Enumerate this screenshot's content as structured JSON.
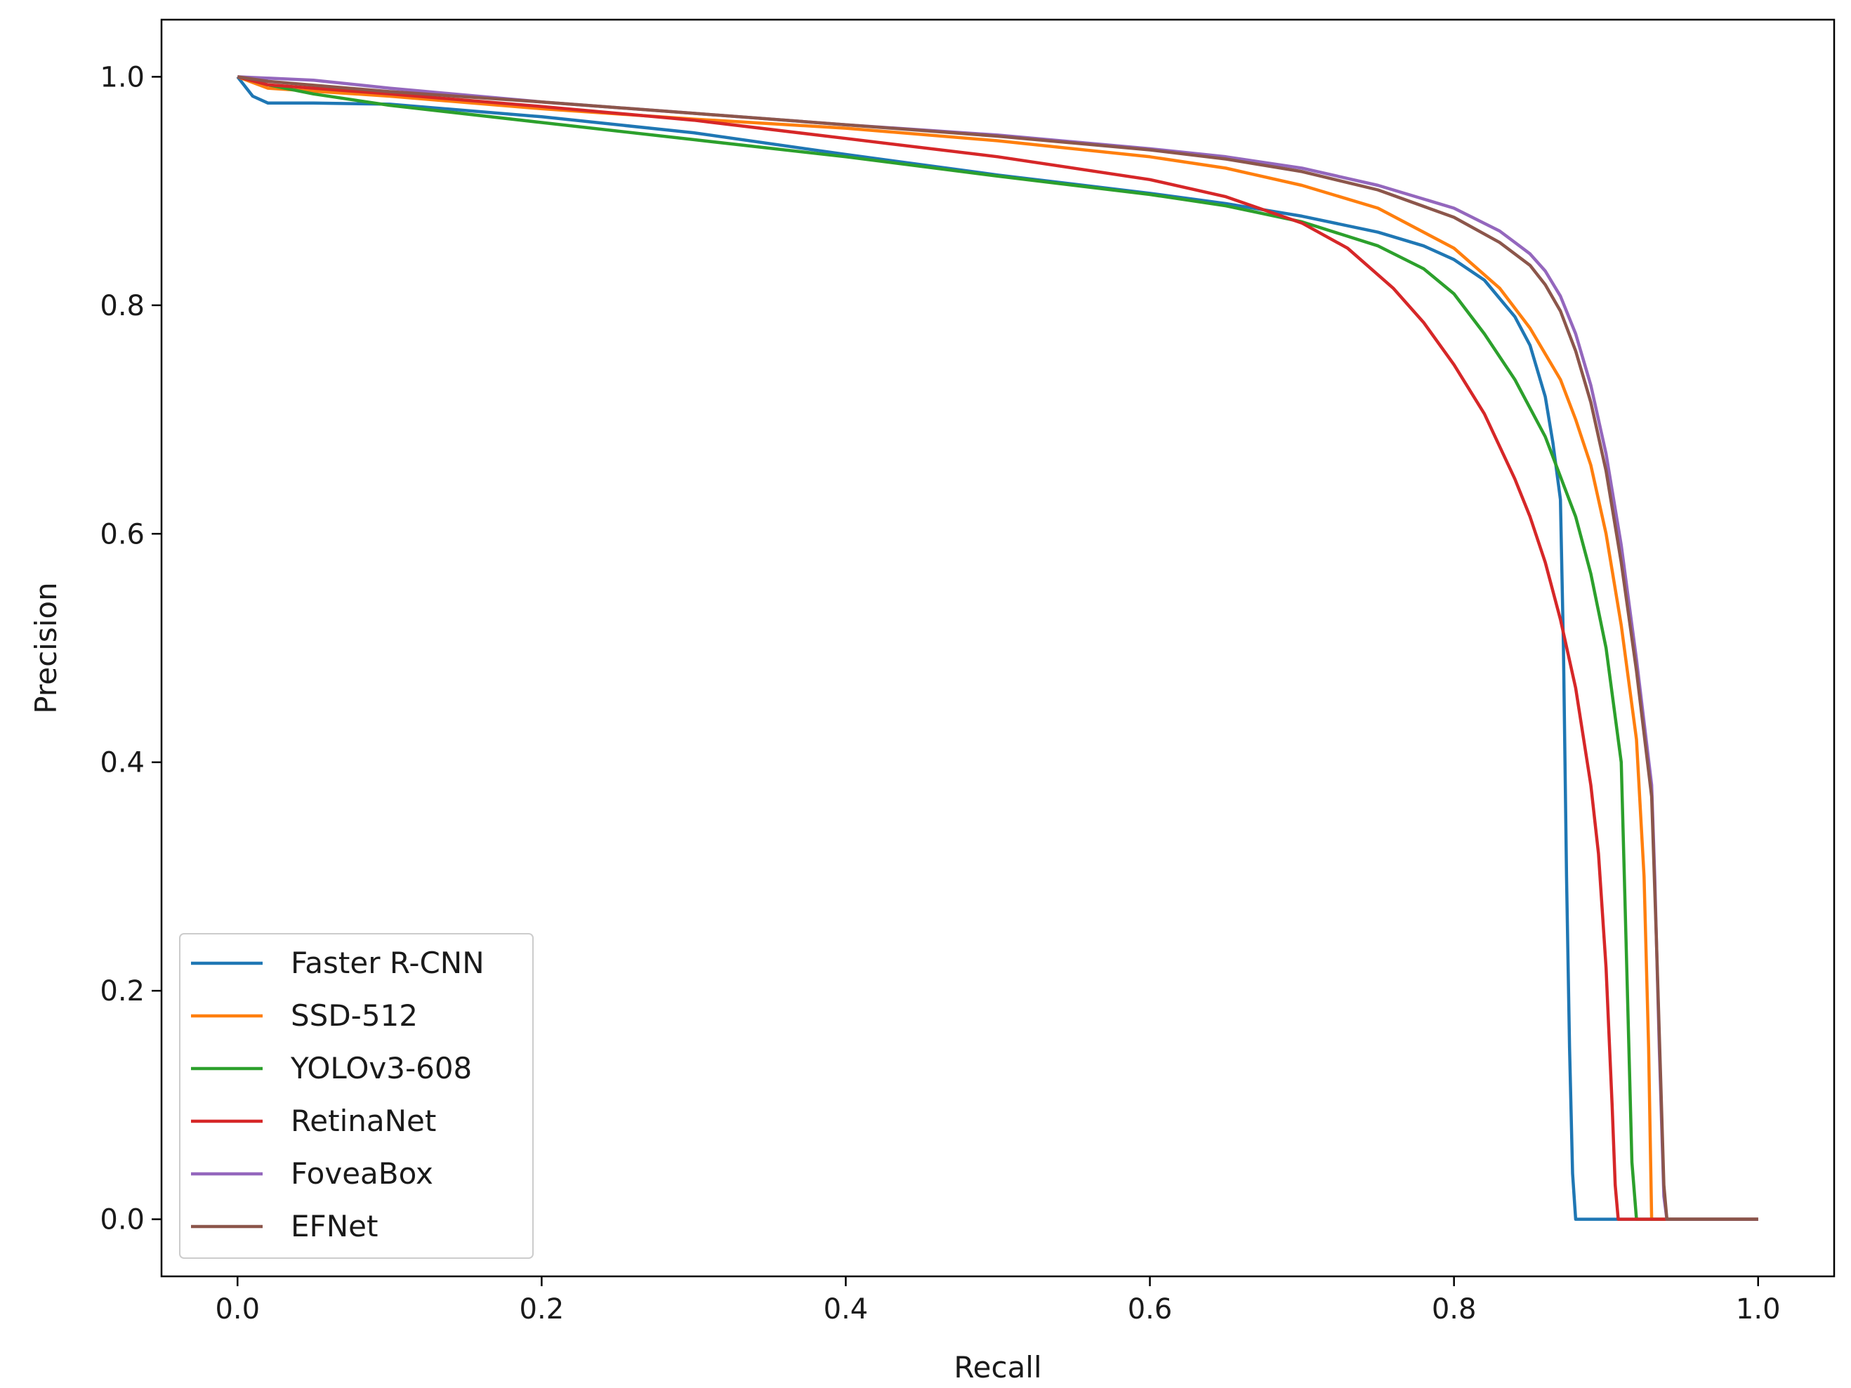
{
  "chart_data": {
    "type": "line",
    "title": "",
    "xlabel": "Recall",
    "ylabel": "Precision",
    "xlim": [
      -0.05,
      1.05
    ],
    "ylim": [
      -0.05,
      1.05
    ],
    "grid": false,
    "legend_position": "lower-left",
    "x_ticks": [
      0.0,
      0.2,
      0.4,
      0.6,
      0.8,
      1.0
    ],
    "x_tick_labels": [
      "0.0",
      "0.2",
      "0.4",
      "0.6",
      "0.8",
      "1.0"
    ],
    "y_ticks": [
      0.0,
      0.2,
      0.4,
      0.6,
      0.8,
      1.0
    ],
    "y_tick_labels": [
      "0.0",
      "0.2",
      "0.4",
      "0.6",
      "0.8",
      "1.0"
    ],
    "series": [
      {
        "name": "Faster R-CNN",
        "color": "#1f77b4",
        "points": [
          [
            0.0,
            1.0
          ],
          [
            0.01,
            0.983
          ],
          [
            0.02,
            0.977
          ],
          [
            0.05,
            0.977
          ],
          [
            0.1,
            0.976
          ],
          [
            0.2,
            0.965
          ],
          [
            0.3,
            0.951
          ],
          [
            0.4,
            0.932
          ],
          [
            0.5,
            0.914
          ],
          [
            0.6,
            0.898
          ],
          [
            0.65,
            0.889
          ],
          [
            0.7,
            0.878
          ],
          [
            0.75,
            0.864
          ],
          [
            0.78,
            0.852
          ],
          [
            0.8,
            0.84
          ],
          [
            0.82,
            0.822
          ],
          [
            0.84,
            0.79
          ],
          [
            0.85,
            0.765
          ],
          [
            0.86,
            0.72
          ],
          [
            0.865,
            0.68
          ],
          [
            0.87,
            0.63
          ],
          [
            0.872,
            0.5
          ],
          [
            0.874,
            0.3
          ],
          [
            0.876,
            0.15
          ],
          [
            0.878,
            0.04
          ],
          [
            0.88,
            0.0
          ],
          [
            1.0,
            0.0
          ]
        ]
      },
      {
        "name": "SSD-512",
        "color": "#ff7f0e",
        "points": [
          [
            0.0,
            1.0
          ],
          [
            0.02,
            0.99
          ],
          [
            0.1,
            0.983
          ],
          [
            0.2,
            0.972
          ],
          [
            0.3,
            0.963
          ],
          [
            0.4,
            0.955
          ],
          [
            0.5,
            0.944
          ],
          [
            0.6,
            0.93
          ],
          [
            0.65,
            0.92
          ],
          [
            0.7,
            0.905
          ],
          [
            0.75,
            0.885
          ],
          [
            0.8,
            0.85
          ],
          [
            0.83,
            0.815
          ],
          [
            0.85,
            0.78
          ],
          [
            0.87,
            0.735
          ],
          [
            0.88,
            0.7
          ],
          [
            0.89,
            0.66
          ],
          [
            0.9,
            0.6
          ],
          [
            0.91,
            0.52
          ],
          [
            0.92,
            0.42
          ],
          [
            0.925,
            0.3
          ],
          [
            0.928,
            0.15
          ],
          [
            0.93,
            0.0
          ],
          [
            1.0,
            0.0
          ]
        ]
      },
      {
        "name": "YOLOv3-608",
        "color": "#2ca02c",
        "points": [
          [
            0.0,
            1.0
          ],
          [
            0.02,
            0.993
          ],
          [
            0.05,
            0.985
          ],
          [
            0.1,
            0.975
          ],
          [
            0.2,
            0.96
          ],
          [
            0.3,
            0.945
          ],
          [
            0.4,
            0.93
          ],
          [
            0.5,
            0.913
          ],
          [
            0.6,
            0.897
          ],
          [
            0.65,
            0.887
          ],
          [
            0.7,
            0.873
          ],
          [
            0.75,
            0.852
          ],
          [
            0.78,
            0.832
          ],
          [
            0.8,
            0.81
          ],
          [
            0.82,
            0.775
          ],
          [
            0.84,
            0.735
          ],
          [
            0.86,
            0.685
          ],
          [
            0.88,
            0.615
          ],
          [
            0.89,
            0.565
          ],
          [
            0.9,
            0.5
          ],
          [
            0.91,
            0.4
          ],
          [
            0.912,
            0.3
          ],
          [
            0.915,
            0.15
          ],
          [
            0.917,
            0.05
          ],
          [
            0.92,
            0.0
          ],
          [
            1.0,
            0.0
          ]
        ]
      },
      {
        "name": "RetinaNet",
        "color": "#d62728",
        "points": [
          [
            0.0,
            1.0
          ],
          [
            0.02,
            0.993
          ],
          [
            0.1,
            0.985
          ],
          [
            0.2,
            0.974
          ],
          [
            0.3,
            0.962
          ],
          [
            0.4,
            0.946
          ],
          [
            0.5,
            0.93
          ],
          [
            0.6,
            0.91
          ],
          [
            0.65,
            0.895
          ],
          [
            0.7,
            0.872
          ],
          [
            0.73,
            0.85
          ],
          [
            0.76,
            0.815
          ],
          [
            0.78,
            0.785
          ],
          [
            0.8,
            0.748
          ],
          [
            0.82,
            0.705
          ],
          [
            0.84,
            0.648
          ],
          [
            0.85,
            0.615
          ],
          [
            0.86,
            0.575
          ],
          [
            0.87,
            0.525
          ],
          [
            0.88,
            0.465
          ],
          [
            0.89,
            0.38
          ],
          [
            0.895,
            0.32
          ],
          [
            0.9,
            0.22
          ],
          [
            0.904,
            0.1
          ],
          [
            0.906,
            0.03
          ],
          [
            0.908,
            0.0
          ],
          [
            1.0,
            0.0
          ]
        ]
      },
      {
        "name": "FoveaBox",
        "color": "#9467bd",
        "points": [
          [
            0.0,
            1.0
          ],
          [
            0.05,
            0.997
          ],
          [
            0.1,
            0.99
          ],
          [
            0.2,
            0.978
          ],
          [
            0.3,
            0.968
          ],
          [
            0.4,
            0.958
          ],
          [
            0.5,
            0.949
          ],
          [
            0.6,
            0.937
          ],
          [
            0.65,
            0.93
          ],
          [
            0.7,
            0.92
          ],
          [
            0.75,
            0.905
          ],
          [
            0.8,
            0.885
          ],
          [
            0.83,
            0.865
          ],
          [
            0.85,
            0.845
          ],
          [
            0.86,
            0.83
          ],
          [
            0.87,
            0.808
          ],
          [
            0.88,
            0.775
          ],
          [
            0.89,
            0.73
          ],
          [
            0.9,
            0.67
          ],
          [
            0.91,
            0.59
          ],
          [
            0.92,
            0.49
          ],
          [
            0.93,
            0.38
          ],
          [
            0.932,
            0.3
          ],
          [
            0.935,
            0.15
          ],
          [
            0.938,
            0.02
          ],
          [
            0.94,
            0.0
          ],
          [
            1.0,
            0.0
          ]
        ]
      },
      {
        "name": "EFNet",
        "color": "#8c564b",
        "points": [
          [
            0.0,
            1.0
          ],
          [
            0.02,
            0.996
          ],
          [
            0.1,
            0.987
          ],
          [
            0.2,
            0.978
          ],
          [
            0.3,
            0.968
          ],
          [
            0.4,
            0.958
          ],
          [
            0.5,
            0.948
          ],
          [
            0.6,
            0.936
          ],
          [
            0.65,
            0.928
          ],
          [
            0.7,
            0.917
          ],
          [
            0.75,
            0.901
          ],
          [
            0.8,
            0.877
          ],
          [
            0.83,
            0.855
          ],
          [
            0.85,
            0.835
          ],
          [
            0.86,
            0.818
          ],
          [
            0.87,
            0.795
          ],
          [
            0.88,
            0.76
          ],
          [
            0.89,
            0.715
          ],
          [
            0.9,
            0.655
          ],
          [
            0.91,
            0.575
          ],
          [
            0.92,
            0.48
          ],
          [
            0.93,
            0.37
          ],
          [
            0.933,
            0.25
          ],
          [
            0.936,
            0.12
          ],
          [
            0.938,
            0.03
          ],
          [
            0.94,
            0.0
          ],
          [
            1.0,
            0.0
          ]
        ]
      }
    ]
  }
}
